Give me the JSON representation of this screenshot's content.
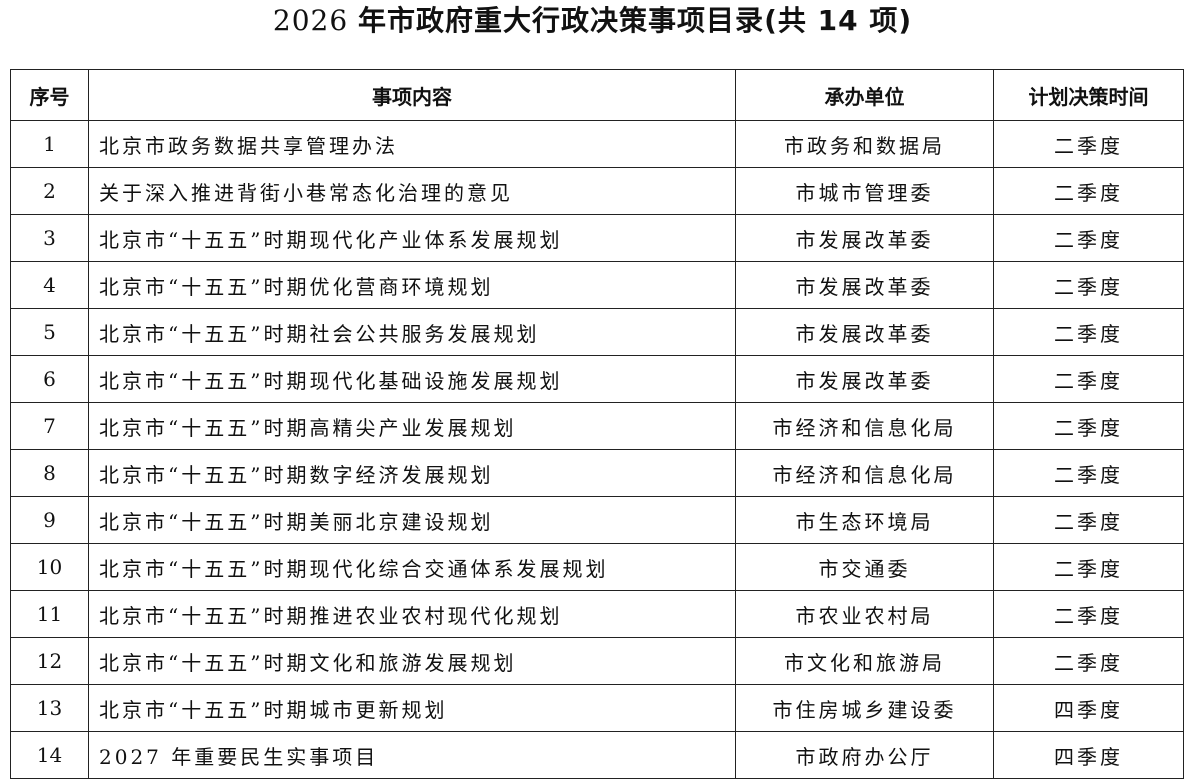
{
  "title": {
    "prefix": "2026 ",
    "main": "年市政府重大行政决策事项目录",
    "suffix": "(共 14 项)"
  },
  "table": {
    "headers": [
      "序号",
      "事项内容",
      "承办单位",
      "计划决策时间"
    ],
    "rows": [
      {
        "no": "1",
        "item": "北京市政务数据共享管理办法",
        "unit": "市政务和数据局",
        "time": "二季度"
      },
      {
        "no": "2",
        "item": "关于深入推进背街小巷常态化治理的意见",
        "unit": "市城市管理委",
        "time": "二季度"
      },
      {
        "no": "3",
        "item": "北京市“十五五”时期现代化产业体系发展规划",
        "unit": "市发展改革委",
        "time": "二季度"
      },
      {
        "no": "4",
        "item": "北京市“十五五”时期优化营商环境规划",
        "unit": "市发展改革委",
        "time": "二季度"
      },
      {
        "no": "5",
        "item": "北京市“十五五”时期社会公共服务发展规划",
        "unit": "市发展改革委",
        "time": "二季度"
      },
      {
        "no": "6",
        "item": "北京市“十五五”时期现代化基础设施发展规划",
        "unit": "市发展改革委",
        "time": "二季度"
      },
      {
        "no": "7",
        "item": "北京市“十五五”时期高精尖产业发展规划",
        "unit": "市经济和信息化局",
        "time": "二季度"
      },
      {
        "no": "8",
        "item": "北京市“十五五”时期数字经济发展规划",
        "unit": "市经济和信息化局",
        "time": "二季度"
      },
      {
        "no": "9",
        "item": "北京市“十五五”时期美丽北京建设规划",
        "unit": "市生态环境局",
        "time": "二季度"
      },
      {
        "no": "10",
        "item": "北京市“十五五”时期现代化综合交通体系发展规划",
        "unit": "市交通委",
        "time": "二季度"
      },
      {
        "no": "11",
        "item": "北京市“十五五”时期推进农业农村现代化规划",
        "unit": "市农业农村局",
        "time": "二季度"
      },
      {
        "no": "12",
        "item": "北京市“十五五”时期文化和旅游发展规划",
        "unit": "市文化和旅游局",
        "time": "二季度"
      },
      {
        "no": "13",
        "item": "北京市“十五五”时期城市更新规划",
        "unit": "市住房城乡建设委",
        "time": "四季度"
      },
      {
        "no": "14",
        "item": "2027 年重要民生实事项目",
        "unit": "市政府办公厅",
        "time": "四季度"
      }
    ]
  }
}
